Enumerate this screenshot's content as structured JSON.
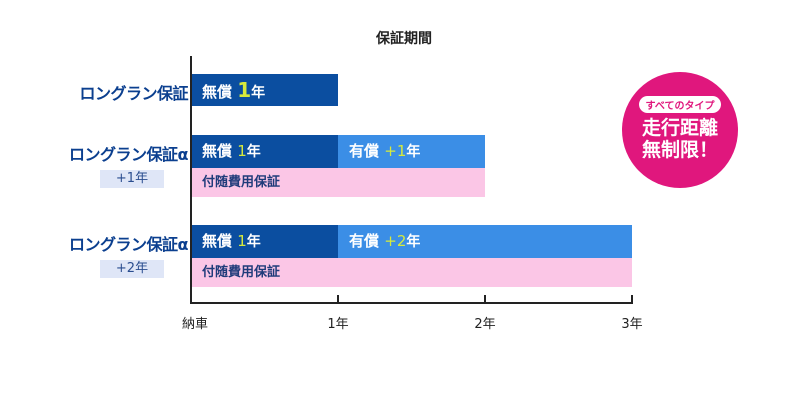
{
  "chart_data": {
    "type": "bar",
    "title": "保証期間",
    "x_ticks": [
      "納車",
      "1年",
      "2年",
      "3年"
    ],
    "xlim": [
      0,
      3
    ],
    "rows": [
      {
        "label": "ロングラン保証",
        "tag": "",
        "segments": [
          {
            "kind": "free",
            "start": 0,
            "end": 1,
            "text": "無償",
            "value": "1",
            "unit": "年"
          }
        ],
        "extra": null
      },
      {
        "label": "ロングラン保証α",
        "tag": "+1年",
        "segments": [
          {
            "kind": "free",
            "start": 0,
            "end": 1,
            "text": "無償",
            "value": "1",
            "unit": "年"
          },
          {
            "kind": "paid",
            "start": 1,
            "end": 2,
            "text": "有償",
            "value": "+1",
            "unit": "年"
          }
        ],
        "extra": {
          "start": 0,
          "end": 2,
          "text": "付随費用保証"
        }
      },
      {
        "label": "ロングラン保証α",
        "tag": "+2年",
        "segments": [
          {
            "kind": "free",
            "start": 0,
            "end": 1,
            "text": "無償",
            "value": "1",
            "unit": "年"
          },
          {
            "kind": "paid",
            "start": 1,
            "end": 3,
            "text": "有償",
            "value": "+2",
            "unit": "年"
          }
        ],
        "extra": {
          "start": 0,
          "end": 3,
          "text": "付随費用保証"
        }
      }
    ],
    "colors": {
      "free": "#0b4ea0",
      "paid": "#3b8ee6",
      "extra": "#fbc6e6",
      "highlight": "#d7ea3c"
    }
  },
  "badge": {
    "pill": "すべてのタイプ",
    "line1": "走行距離",
    "line2": "無制限！",
    "color": "#e0177d"
  }
}
